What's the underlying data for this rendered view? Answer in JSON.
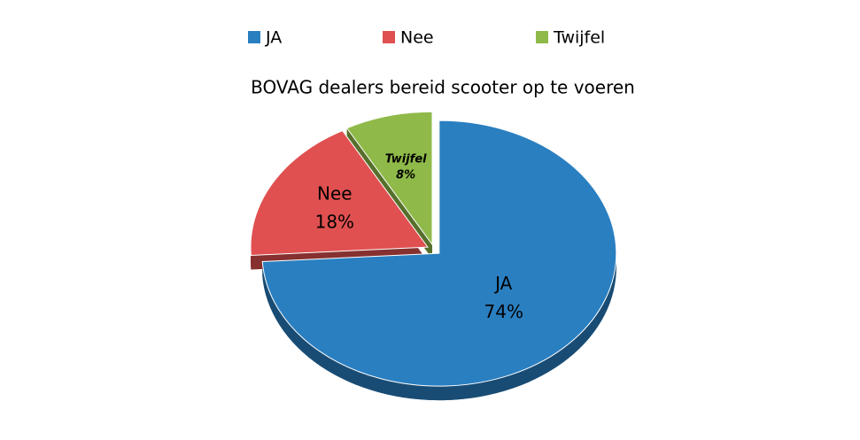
{
  "chart_data": {
    "type": "pie3d",
    "title": "BOVAG dealers bereid scooter op te voeren",
    "categories": [
      "JA",
      "Nee",
      "Twijfel"
    ],
    "values": [
      74,
      18,
      8
    ],
    "value_labels": [
      "74%",
      "18%",
      "8%"
    ],
    "colors": [
      "#2a7fc1",
      "#e05050",
      "#8fba4a"
    ],
    "legend": "top"
  }
}
